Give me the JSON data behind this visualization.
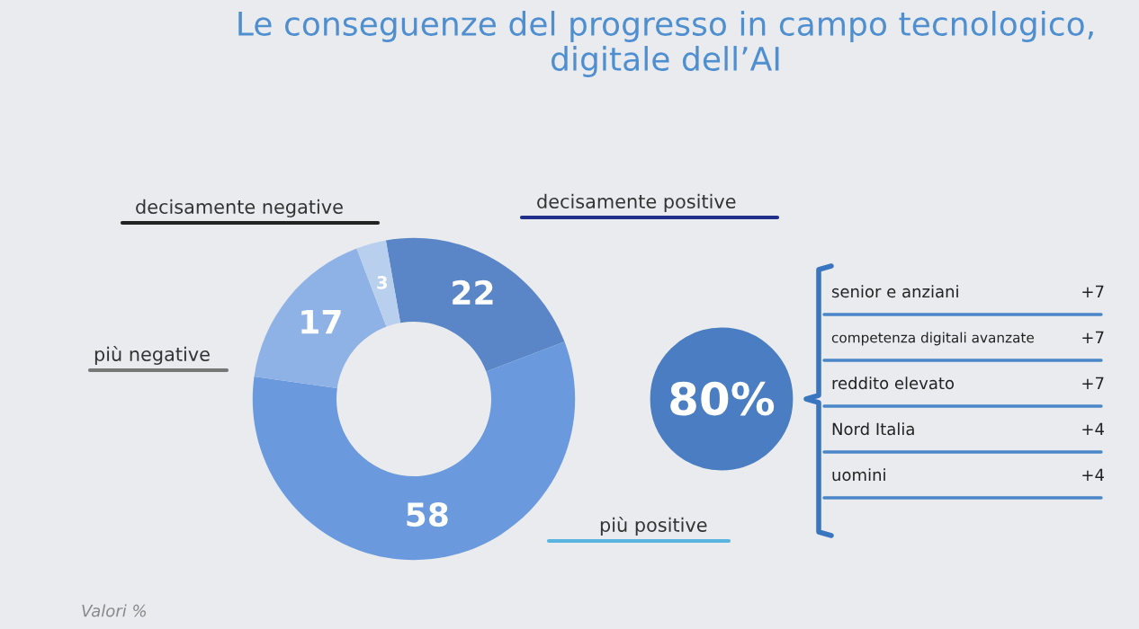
{
  "chart_data": [
    {
      "type": "donut",
      "title": "Le conseguenze del progresso in campo tecnologico,\ndigitale dell’AI",
      "categories": [
        "decisamente positive",
        "più positive",
        "più negative",
        "decisamente negative"
      ],
      "values": [
        22,
        58,
        17,
        3
      ],
      "colors": [
        "#5a86c8",
        "#6a99dd",
        "#8fb2e6",
        "#b9cfee"
      ],
      "data_labels": true,
      "annotations": [
        "Valori %"
      ]
    },
    {
      "type": "other",
      "annotations": [
        "80%",
        "senior e anziani",
        "+7",
        "competenza digitali avanzate",
        "+7",
        "reddito elevato",
        "+7",
        "Nord Italia",
        "+4",
        "uomini",
        "+4"
      ]
    }
  ]
}
